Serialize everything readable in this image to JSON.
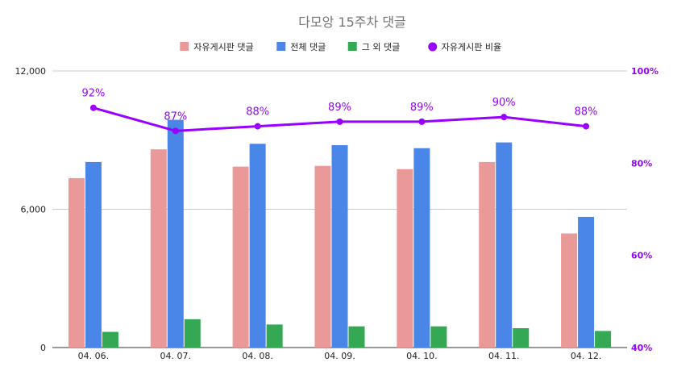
{
  "chart_data": {
    "type": "bar",
    "title": "다모앙 15주차 댓글",
    "categories": [
      "04. 06.",
      "04. 07.",
      "04. 08.",
      "04. 09.",
      "04. 10.",
      "04. 11.",
      "04. 12."
    ],
    "series": [
      {
        "name": "자유게시판 댓글",
        "type": "bar",
        "axis": "left",
        "color": "#ea9999",
        "values": [
          7350,
          8600,
          7850,
          7880,
          7740,
          8050,
          4950
        ]
      },
      {
        "name": "전체 댓글",
        "type": "bar",
        "axis": "left",
        "color": "#4a86e8",
        "values": [
          8050,
          9880,
          8840,
          8780,
          8650,
          8900,
          5670
        ]
      },
      {
        "name": "그 외 댓글",
        "type": "bar",
        "axis": "left",
        "color": "#34a853",
        "values": [
          680,
          1230,
          1000,
          920,
          920,
          840,
          720
        ]
      },
      {
        "name": "자유게시판 비율",
        "type": "line",
        "axis": "right",
        "color": "#9900ff",
        "values": [
          92,
          87,
          88,
          89,
          89,
          90,
          88
        ]
      }
    ],
    "point_labels": [
      "92%",
      "87%",
      "88%",
      "89%",
      "89%",
      "90%",
      "88%"
    ],
    "y_left": {
      "min": 0,
      "max": 12000,
      "ticks": [
        0,
        6000,
        12000
      ],
      "tick_labels": [
        "0",
        "6,000",
        "12,000"
      ]
    },
    "y_right": {
      "min": 40,
      "max": 100,
      "ticks": [
        40,
        60,
        80,
        100
      ],
      "tick_labels": [
        "40%",
        "60%",
        "80%",
        "100%"
      ],
      "color": "#9900ff"
    },
    "legend_position": "top",
    "grid": true
  }
}
